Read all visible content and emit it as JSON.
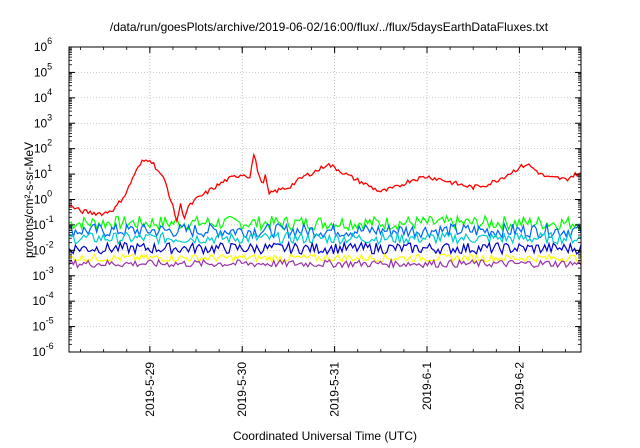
{
  "chart_data": {
    "type": "line",
    "title": "/data/run/goesPlots/archive/2019-06-02/16:00/flux/../flux/5daysEarthDataFluxes.txt",
    "xlabel": "Coordinated Universal Time (UTC)",
    "ylabel": "protons/cm²-s-sr-MeV",
    "yscale": "log",
    "ylim_exp": [
      -6,
      6
    ],
    "ytick_exponents": [
      -6,
      -5,
      -4,
      -3,
      -2,
      -1,
      0,
      1,
      2,
      3,
      4,
      5,
      6
    ],
    "xlim": [
      "2019-05-28 03:00",
      "2019-06-02 16:00"
    ],
    "xticks": [
      {
        "t": "2019-05-29 00:00",
        "label": "2019-5-29"
      },
      {
        "t": "2019-05-30 00:00",
        "label": "2019-5-30"
      },
      {
        "t": "2019-05-31 00:00",
        "label": "2019-5-31"
      },
      {
        "t": "2019-06-01 00:00",
        "label": "2019-6-1"
      },
      {
        "t": "2019-06-02 00:00",
        "label": "2019-6-2"
      }
    ],
    "grid": true,
    "legend": "none",
    "series": [
      {
        "color": "#ff0000",
        "points": [
          [
            "2019-05-28 03:00",
            0.6
          ],
          [
            "2019-05-28 06:00",
            0.35
          ],
          [
            "2019-05-28 09:00",
            0.3
          ],
          [
            "2019-05-28 12:00",
            0.28
          ],
          [
            "2019-05-28 15:00",
            0.45
          ],
          [
            "2019-05-28 18:00",
            2
          ],
          [
            "2019-05-28 20:00",
            10
          ],
          [
            "2019-05-28 22:00",
            30
          ],
          [
            "2019-05-29 00:00",
            40
          ],
          [
            "2019-05-29 02:00",
            15
          ],
          [
            "2019-05-29 04:00",
            5
          ],
          [
            "2019-05-29 06:00",
            0.5
          ],
          [
            "2019-05-29 07:00",
            0.15
          ],
          [
            "2019-05-29 08:00",
            0.6
          ],
          [
            "2019-05-29 09:00",
            0.2
          ],
          [
            "2019-05-29 10:00",
            0.5
          ],
          [
            "2019-05-29 12:00",
            1
          ],
          [
            "2019-05-29 16:00",
            2.5
          ],
          [
            "2019-05-29 20:00",
            6
          ],
          [
            "2019-05-30 00:00",
            10
          ],
          [
            "2019-05-30 02:00",
            8
          ],
          [
            "2019-05-30 03:00",
            60
          ],
          [
            "2019-05-30 04:00",
            15
          ],
          [
            "2019-05-30 05:00",
            4
          ],
          [
            "2019-05-30 06:00",
            8
          ],
          [
            "2019-05-30 07:00",
            1.5
          ],
          [
            "2019-05-30 08:00",
            2
          ],
          [
            "2019-05-30 12:00",
            3
          ],
          [
            "2019-05-30 16:00",
            8
          ],
          [
            "2019-05-30 20:00",
            15
          ],
          [
            "2019-05-30 22:00",
            25
          ],
          [
            "2019-05-31 00:00",
            18
          ],
          [
            "2019-05-31 04:00",
            8
          ],
          [
            "2019-05-31 08:00",
            4
          ],
          [
            "2019-05-31 12:00",
            2
          ],
          [
            "2019-05-31 16:00",
            3
          ],
          [
            "2019-05-31 20:00",
            6
          ],
          [
            "2019-06-01 00:00",
            8
          ],
          [
            "2019-06-01 04:00",
            6
          ],
          [
            "2019-06-01 08:00",
            4
          ],
          [
            "2019-06-01 12:00",
            3
          ],
          [
            "2019-06-01 16:00",
            4
          ],
          [
            "2019-06-01 20:00",
            8
          ],
          [
            "2019-06-01 22:00",
            12
          ],
          [
            "2019-06-02 00:00",
            18
          ],
          [
            "2019-06-02 02:00",
            25
          ],
          [
            "2019-06-02 04:00",
            15
          ],
          [
            "2019-06-02 06:00",
            9
          ],
          [
            "2019-06-02 08:00",
            7
          ],
          [
            "2019-06-02 10:00",
            7
          ],
          [
            "2019-06-02 12:00",
            6
          ],
          [
            "2019-06-02 14:00",
            9
          ],
          [
            "2019-06-02 16:00",
            11
          ]
        ]
      },
      {
        "color": "#00ff00",
        "base": 0.12
      },
      {
        "color": "#0066ff",
        "base": 0.06
      },
      {
        "color": "#00cccc",
        "base": 0.03
      },
      {
        "color": "#0000cc",
        "base": 0.012
      },
      {
        "color": "#ffff00",
        "base": 0.005
      },
      {
        "color": "#9933aa",
        "base": 0.003
      }
    ]
  }
}
